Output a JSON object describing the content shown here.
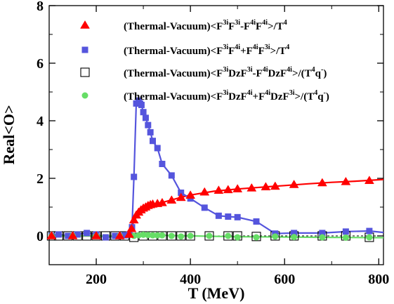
{
  "chart_data": {
    "type": "line",
    "xlabel": "T (MeV)",
    "ylabel": "Real<O>",
    "xlim": [
      100,
      810
    ],
    "ylim": [
      -1,
      8
    ],
    "xticks": [
      200,
      400,
      600,
      800
    ],
    "yticks": [
      0,
      2,
      4,
      6,
      8
    ],
    "legend_position": "top-right",
    "grid": false,
    "series": [
      {
        "name": "(Thermal-Vacuum)<F3iF3i-F4iF4i>/T4",
        "marker": "triangle",
        "filled": true,
        "color": "#ff0000",
        "x": [
          105,
          150,
          200,
          250,
          270,
          275,
          280,
          285,
          290,
          295,
          300,
          305,
          310,
          315,
          320,
          330,
          340,
          360,
          380,
          400,
          430,
          460,
          480,
          500,
          530,
          560,
          580,
          620,
          680,
          730,
          780
        ],
        "y": [
          0.0,
          0.0,
          0.0,
          0.0,
          0.05,
          0.25,
          0.55,
          0.72,
          0.82,
          0.9,
          0.96,
          1.0,
          1.05,
          1.08,
          1.1,
          1.12,
          1.15,
          1.24,
          1.33,
          1.41,
          1.52,
          1.58,
          1.6,
          1.63,
          1.66,
          1.7,
          1.72,
          1.78,
          1.84,
          1.88,
          1.92
        ],
        "curve_x": [
          100,
          200,
          260,
          270,
          280,
          290,
          300,
          320,
          340,
          360,
          380,
          400,
          450,
          500,
          550,
          600,
          650,
          700,
          750,
          810
        ],
        "curve_y": [
          0.0,
          0.0,
          0.0,
          0.1,
          0.52,
          0.78,
          0.94,
          1.08,
          1.16,
          1.25,
          1.34,
          1.42,
          1.55,
          1.63,
          1.69,
          1.75,
          1.81,
          1.86,
          1.9,
          1.96
        ]
      },
      {
        "name": "(Thermal-Vacuum)<F3iF4i+F4iF3i>/T4",
        "marker": "square",
        "filled": true,
        "color": "#5555dd",
        "x": [
          105,
          120,
          140,
          160,
          180,
          200,
          220,
          240,
          260,
          270,
          276,
          280,
          285,
          290,
          293,
          296,
          300,
          305,
          310,
          315,
          320,
          330,
          340,
          360,
          380,
          400,
          430,
          460,
          480,
          500,
          540,
          580,
          620,
          680,
          730,
          780
        ],
        "y": [
          0.0,
          0.05,
          0.0,
          0.05,
          0.1,
          0.05,
          -0.05,
          0.0,
          0.02,
          0.05,
          0.3,
          2.05,
          4.6,
          4.7,
          4.6,
          4.55,
          4.3,
          4.1,
          3.85,
          3.6,
          3.3,
          3.05,
          2.5,
          2.1,
          1.5,
          1.3,
          0.98,
          0.7,
          0.67,
          0.65,
          0.5,
          0.08,
          0.1,
          0.1,
          0.15,
          0.17
        ],
        "curve_x": [
          100,
          120,
          140,
          160,
          180,
          200,
          220,
          240,
          260,
          270,
          276,
          280,
          285,
          290,
          293,
          296,
          300,
          305,
          310,
          315,
          320,
          330,
          340,
          360,
          380,
          400,
          430,
          460,
          480,
          500,
          540,
          580,
          620,
          680,
          730,
          780,
          810
        ],
        "curve_y": [
          0.0,
          0.05,
          0.0,
          0.05,
          0.1,
          0.05,
          -0.05,
          0.0,
          0.02,
          0.05,
          0.3,
          2.05,
          4.6,
          4.7,
          4.6,
          4.55,
          4.3,
          4.1,
          3.85,
          3.6,
          3.3,
          3.05,
          2.5,
          2.1,
          1.5,
          1.3,
          0.98,
          0.7,
          0.67,
          0.65,
          0.5,
          0.08,
          0.1,
          0.1,
          0.15,
          0.17,
          0.12
        ]
      },
      {
        "name": "(Thermal-Vacuum)<F3iDzF3i-F4iDzF4i>/(T4q-)",
        "marker": "square",
        "filled": false,
        "color": "#000000",
        "x": [
          105,
          120,
          140,
          160,
          180,
          200,
          220,
          240,
          260,
          280,
          300,
          320,
          340,
          360,
          380,
          400,
          440,
          480,
          500,
          540,
          580,
          620,
          680,
          730,
          780
        ],
        "y": [
          0.0,
          0.0,
          0.0,
          0.0,
          0.0,
          0.0,
          0.0,
          0.0,
          0.0,
          -0.05,
          0.0,
          0.0,
          0.0,
          0.0,
          0.0,
          0.0,
          0.0,
          0.0,
          0.0,
          -0.02,
          0.0,
          0.0,
          0.0,
          0.0,
          -0.05
        ]
      },
      {
        "name": "(Thermal-Vacuum)<F3iDzF4i+F4iDzF3i>/(T4q-)",
        "marker": "circle",
        "filled": true,
        "color": "#66dd66",
        "x": [
          105,
          150,
          200,
          250,
          280,
          290,
          300,
          310,
          320,
          330,
          340,
          360,
          380,
          400,
          440,
          480,
          500,
          540,
          580,
          620,
          680,
          730,
          780
        ],
        "y": [
          0.0,
          0.0,
          0.0,
          0.0,
          0.0,
          0.02,
          0.04,
          0.03,
          0.02,
          0.02,
          0.02,
          0.0,
          -0.02,
          0.0,
          0.0,
          0.0,
          -0.05,
          -0.05,
          -0.02,
          -0.04,
          -0.05,
          -0.06,
          -0.05
        ],
        "curve_x": [
          100,
          200,
          280,
          300,
          340,
          400,
          500,
          600,
          700,
          810
        ],
        "curve_y": [
          0.0,
          0.0,
          0.0,
          0.03,
          0.02,
          0.0,
          -0.03,
          -0.04,
          -0.05,
          -0.06
        ]
      }
    ],
    "legend": {
      "prefix": "(Thermal-Vacuum)<",
      "items": [
        {
          "runs": [
            [
              "F",
              "3i",
              "F",
              "3i",
              "-F",
              "4i",
              "F",
              "4i",
              ">/T",
              "4"
            ]
          ]
        },
        {
          "runs": [
            [
              "F",
              "3i",
              "F",
              "4i",
              "+F",
              "4i",
              "F",
              "3i",
              ">/T",
              "4"
            ]
          ]
        },
        {
          "runs": [
            [
              "F",
              "3i",
              "DzF",
              "3i",
              "-F",
              "4i",
              "DzF",
              "4i",
              ">/(T",
              "4",
              "q",
              "-",
              ")"
            ]
          ]
        },
        {
          "runs": [
            [
              "F",
              "3i",
              "DzF",
              "4i",
              "+F",
              "4i",
              "DzF",
              "3i",
              ">/(T",
              "4",
              "q",
              "-",
              ")"
            ]
          ]
        }
      ]
    }
  }
}
